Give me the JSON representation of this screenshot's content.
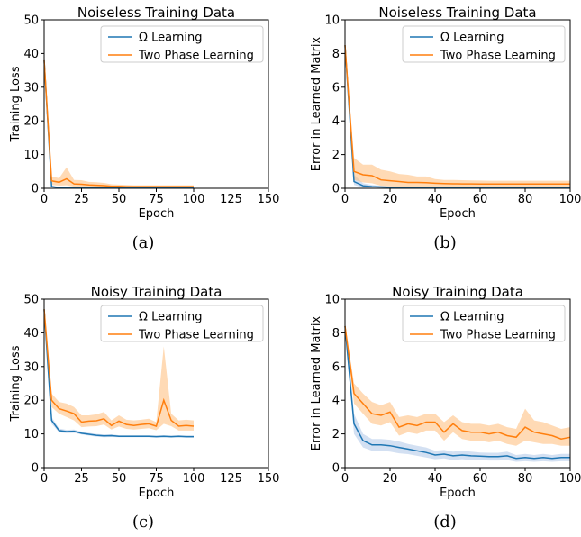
{
  "captions": [
    "(a)",
    "(b)",
    "(c)",
    "(d)"
  ],
  "colors": {
    "omega": "#1f77b4",
    "omega_band": "#aec7e8",
    "two_phase": "#ff7f0e",
    "two_phase_band": "#ffbb78"
  },
  "chart_data": [
    {
      "type": "line",
      "title": "Noiseless Training Data",
      "xlabel": "Epoch",
      "ylabel": "Training Loss",
      "xlim": [
        0,
        150
      ],
      "ylim": [
        0,
        50
      ],
      "xticks": [
        0,
        25,
        50,
        75,
        100,
        125,
        150
      ],
      "yticks": [
        0,
        10,
        20,
        30,
        40,
        50
      ],
      "grid": false,
      "legend_position": "top-right",
      "series": [
        {
          "name": "Ω Learning",
          "x": [
            0,
            5,
            10,
            15,
            20,
            25,
            30,
            35,
            40,
            45,
            50,
            55,
            60,
            65,
            70,
            75,
            80,
            85,
            90,
            95,
            100
          ],
          "y": [
            38,
            0.5,
            0.2,
            0.15,
            0.1,
            0.1,
            0.1,
            0.1,
            0.1,
            0.1,
            0.1,
            0.1,
            0.1,
            0.1,
            0.1,
            0.1,
            0.1,
            0.1,
            0.1,
            0.1,
            0.1
          ],
          "lower": [
            37,
            0.2,
            0.1,
            0.05,
            0.05,
            0.05,
            0.05,
            0.05,
            0.05,
            0.05,
            0.05,
            0.05,
            0.05,
            0.05,
            0.05,
            0.05,
            0.05,
            0.05,
            0.05,
            0.05,
            0.05
          ],
          "upper": [
            39,
            0.9,
            0.4,
            0.3,
            0.2,
            0.2,
            0.2,
            0.2,
            0.2,
            0.2,
            0.2,
            0.2,
            0.2,
            0.2,
            0.2,
            0.2,
            0.2,
            0.2,
            0.2,
            0.2,
            0.2
          ]
        },
        {
          "name": "Two Phase Learning",
          "x": [
            0,
            5,
            10,
            15,
            20,
            25,
            30,
            35,
            40,
            45,
            50,
            55,
            60,
            65,
            70,
            75,
            80,
            85,
            90,
            95,
            100
          ],
          "y": [
            38,
            2.2,
            1.8,
            2.8,
            1.3,
            1.2,
            1.0,
            0.9,
            0.8,
            0.6,
            0.6,
            0.5,
            0.5,
            0.5,
            0.5,
            0.5,
            0.5,
            0.5,
            0.5,
            0.5,
            0.5
          ],
          "lower": [
            37,
            1.0,
            0.8,
            0.9,
            0.5,
            0.5,
            0.4,
            0.4,
            0.3,
            0.2,
            0.2,
            0.2,
            0.2,
            0.2,
            0.2,
            0.2,
            0.2,
            0.2,
            0.2,
            0.2,
            0.2
          ],
          "upper": [
            39,
            3.5,
            3.0,
            6.2,
            2.5,
            2.4,
            1.9,
            1.8,
            1.6,
            1.2,
            1.1,
            1.0,
            0.9,
            0.9,
            0.9,
            0.9,
            0.9,
            0.9,
            0.9,
            0.9,
            0.9
          ]
        }
      ]
    },
    {
      "type": "line",
      "title": "Noiseless Training Data",
      "xlabel": "Epoch",
      "ylabel": "Error in Learned Matrix",
      "xlim": [
        0,
        100
      ],
      "ylim": [
        0,
        10
      ],
      "xticks": [
        0,
        20,
        40,
        60,
        80,
        100
      ],
      "yticks": [
        0,
        2,
        4,
        6,
        8,
        10
      ],
      "grid": false,
      "legend_position": "top-right",
      "series": [
        {
          "name": "Ω Learning",
          "x": [
            0,
            4,
            8,
            12,
            16,
            20,
            24,
            28,
            32,
            36,
            40,
            44,
            48,
            52,
            56,
            60,
            64,
            68,
            72,
            76,
            80,
            84,
            88,
            92,
            96,
            100
          ],
          "y": [
            8.5,
            0.4,
            0.15,
            0.1,
            0.08,
            0.06,
            0.05,
            0.05,
            0.04,
            0.04,
            0.03,
            0.03,
            0.03,
            0.03,
            0.03,
            0.03,
            0.03,
            0.03,
            0.03,
            0.03,
            0.03,
            0.03,
            0.03,
            0.03,
            0.03,
            0.03
          ],
          "lower": [
            8.3,
            0.2,
            0.05,
            0.04,
            0.03,
            0.02,
            0.02,
            0.02,
            0.02,
            0.02,
            0.01,
            0.01,
            0.01,
            0.01,
            0.01,
            0.01,
            0.01,
            0.01,
            0.01,
            0.01,
            0.01,
            0.01,
            0.01,
            0.01,
            0.01,
            0.01
          ],
          "upper": [
            8.7,
            0.8,
            0.3,
            0.2,
            0.15,
            0.12,
            0.1,
            0.1,
            0.08,
            0.08,
            0.06,
            0.06,
            0.06,
            0.06,
            0.06,
            0.06,
            0.06,
            0.06,
            0.06,
            0.06,
            0.06,
            0.06,
            0.06,
            0.06,
            0.06,
            0.06
          ]
        },
        {
          "name": "Two Phase Learning",
          "x": [
            0,
            4,
            8,
            12,
            16,
            20,
            24,
            28,
            32,
            36,
            40,
            44,
            48,
            52,
            56,
            60,
            64,
            68,
            72,
            76,
            80,
            84,
            88,
            92,
            96,
            100
          ],
          "y": [
            8.5,
            1.0,
            0.8,
            0.75,
            0.5,
            0.45,
            0.4,
            0.35,
            0.35,
            0.33,
            0.3,
            0.28,
            0.27,
            0.26,
            0.26,
            0.25,
            0.25,
            0.25,
            0.25,
            0.25,
            0.25,
            0.25,
            0.25,
            0.25,
            0.25,
            0.25
          ],
          "lower": [
            8.3,
            0.5,
            0.35,
            0.3,
            0.15,
            0.12,
            0.1,
            0.1,
            0.1,
            0.08,
            0.06,
            0.05,
            0.05,
            0.05,
            0.05,
            0.05,
            0.05,
            0.05,
            0.05,
            0.05,
            0.05,
            0.05,
            0.05,
            0.05,
            0.05,
            0.05
          ],
          "upper": [
            8.7,
            1.8,
            1.4,
            1.4,
            1.1,
            1.0,
            0.85,
            0.8,
            0.7,
            0.7,
            0.55,
            0.5,
            0.5,
            0.48,
            0.47,
            0.46,
            0.45,
            0.45,
            0.45,
            0.45,
            0.45,
            0.45,
            0.45,
            0.45,
            0.45,
            0.45
          ]
        }
      ]
    },
    {
      "type": "line",
      "title": "Noisy Training Data",
      "xlabel": "Epoch",
      "ylabel": "Training Loss",
      "xlim": [
        0,
        150
      ],
      "ylim": [
        0,
        50
      ],
      "xticks": [
        0,
        25,
        50,
        75,
        100,
        125,
        150
      ],
      "yticks": [
        0,
        10,
        20,
        30,
        40,
        50
      ],
      "grid": false,
      "legend_position": "top-right",
      "series": [
        {
          "name": "Ω Learning",
          "x": [
            0,
            5,
            10,
            15,
            20,
            25,
            30,
            35,
            40,
            45,
            50,
            55,
            60,
            65,
            70,
            75,
            80,
            85,
            90,
            95,
            100
          ],
          "y": [
            47,
            14,
            11,
            10.7,
            10.8,
            10.2,
            9.9,
            9.6,
            9.4,
            9.5,
            9.3,
            9.3,
            9.3,
            9.3,
            9.3,
            9.2,
            9.3,
            9.2,
            9.3,
            9.2,
            9.2
          ],
          "lower": [
            46,
            13,
            10.5,
            10.2,
            10.3,
            9.8,
            9.5,
            9.2,
            9.0,
            9.1,
            9.0,
            9.0,
            9.0,
            9.0,
            9.0,
            8.9,
            9.0,
            8.9,
            9.0,
            8.9,
            8.9
          ],
          "upper": [
            48,
            15,
            11.6,
            11.2,
            11.3,
            10.7,
            10.3,
            10.0,
            9.8,
            9.9,
            9.6,
            9.6,
            9.6,
            9.6,
            9.6,
            9.5,
            9.6,
            9.5,
            9.6,
            9.5,
            9.5
          ]
        },
        {
          "name": "Two Phase Learning",
          "x": [
            0,
            5,
            10,
            15,
            20,
            25,
            30,
            35,
            40,
            45,
            50,
            55,
            60,
            65,
            70,
            75,
            80,
            85,
            90,
            95,
            100
          ],
          "y": [
            47,
            20,
            17.5,
            16.8,
            16,
            13.5,
            13.8,
            13.9,
            14.5,
            12.5,
            13.8,
            12.8,
            12.5,
            12.8,
            13.0,
            12.3,
            20,
            14.0,
            12.3,
            12.5,
            12.3
          ],
          "lower": [
            46,
            18,
            16,
            15,
            14,
            12,
            12.2,
            12.3,
            12.8,
            11.3,
            12.2,
            11.5,
            11.3,
            11.5,
            11.7,
            11.1,
            13,
            12.3,
            11.0,
            11.0,
            11.0
          ],
          "upper": [
            48,
            22,
            19.5,
            19,
            18,
            15.5,
            15.5,
            15.8,
            16.5,
            14.0,
            15.5,
            14.2,
            14.0,
            14.2,
            14.5,
            13.5,
            36,
            16,
            14.0,
            14.2,
            14.0
          ]
        }
      ]
    },
    {
      "type": "line",
      "title": "Noisy Training Data",
      "xlabel": "Epoch",
      "ylabel": "Error in Learned Matrix",
      "xlim": [
        0,
        100
      ],
      "ylim": [
        0,
        10
      ],
      "xticks": [
        0,
        20,
        40,
        60,
        80,
        100
      ],
      "yticks": [
        0,
        2,
        4,
        6,
        8,
        10
      ],
      "grid": false,
      "legend_position": "top-right",
      "series": [
        {
          "name": "Ω Learning",
          "x": [
            0,
            4,
            8,
            12,
            16,
            20,
            24,
            28,
            32,
            36,
            40,
            44,
            48,
            52,
            56,
            60,
            64,
            68,
            72,
            76,
            80,
            84,
            88,
            92,
            96,
            100
          ],
          "y": [
            8.4,
            2.6,
            1.6,
            1.35,
            1.35,
            1.3,
            1.2,
            1.1,
            1.0,
            0.9,
            0.75,
            0.8,
            0.7,
            0.75,
            0.7,
            0.68,
            0.65,
            0.65,
            0.7,
            0.55,
            0.6,
            0.55,
            0.6,
            0.55,
            0.6,
            0.6
          ],
          "lower": [
            8.2,
            2.0,
            1.2,
            1.0,
            1.0,
            0.95,
            0.85,
            0.8,
            0.7,
            0.6,
            0.5,
            0.55,
            0.45,
            0.5,
            0.45,
            0.45,
            0.42,
            0.42,
            0.45,
            0.35,
            0.38,
            0.35,
            0.38,
            0.35,
            0.38,
            0.38
          ],
          "upper": [
            8.6,
            3.2,
            2.0,
            1.7,
            1.7,
            1.65,
            1.55,
            1.4,
            1.3,
            1.2,
            1.0,
            1.05,
            0.95,
            1.0,
            0.95,
            0.9,
            0.88,
            0.88,
            0.95,
            0.75,
            0.82,
            0.75,
            0.82,
            0.75,
            0.82,
            0.82
          ]
        },
        {
          "name": "Two Phase Learning",
          "x": [
            0,
            4,
            8,
            12,
            16,
            20,
            24,
            28,
            32,
            36,
            40,
            44,
            48,
            52,
            56,
            60,
            64,
            68,
            72,
            76,
            80,
            84,
            88,
            92,
            96,
            100
          ],
          "y": [
            8.4,
            4.4,
            3.8,
            3.2,
            3.1,
            3.3,
            2.4,
            2.6,
            2.5,
            2.7,
            2.7,
            2.1,
            2.6,
            2.2,
            2.1,
            2.1,
            2.0,
            2.1,
            1.9,
            1.8,
            2.4,
            2.1,
            2.0,
            1.9,
            1.7,
            1.8
          ],
          "lower": [
            8.2,
            3.8,
            3.2,
            2.6,
            2.5,
            2.7,
            1.9,
            2.1,
            2.0,
            2.2,
            2.2,
            1.6,
            2.1,
            1.7,
            1.6,
            1.6,
            1.5,
            1.6,
            1.4,
            1.3,
            1.6,
            1.5,
            1.4,
            1.4,
            1.3,
            1.3
          ],
          "upper": [
            8.6,
            5.0,
            4.4,
            3.9,
            3.7,
            3.9,
            3.0,
            3.1,
            3.0,
            3.2,
            3.2,
            2.7,
            3.1,
            2.7,
            2.6,
            2.6,
            2.5,
            2.6,
            2.4,
            2.3,
            3.5,
            2.8,
            2.7,
            2.5,
            2.3,
            2.4
          ]
        }
      ]
    }
  ]
}
